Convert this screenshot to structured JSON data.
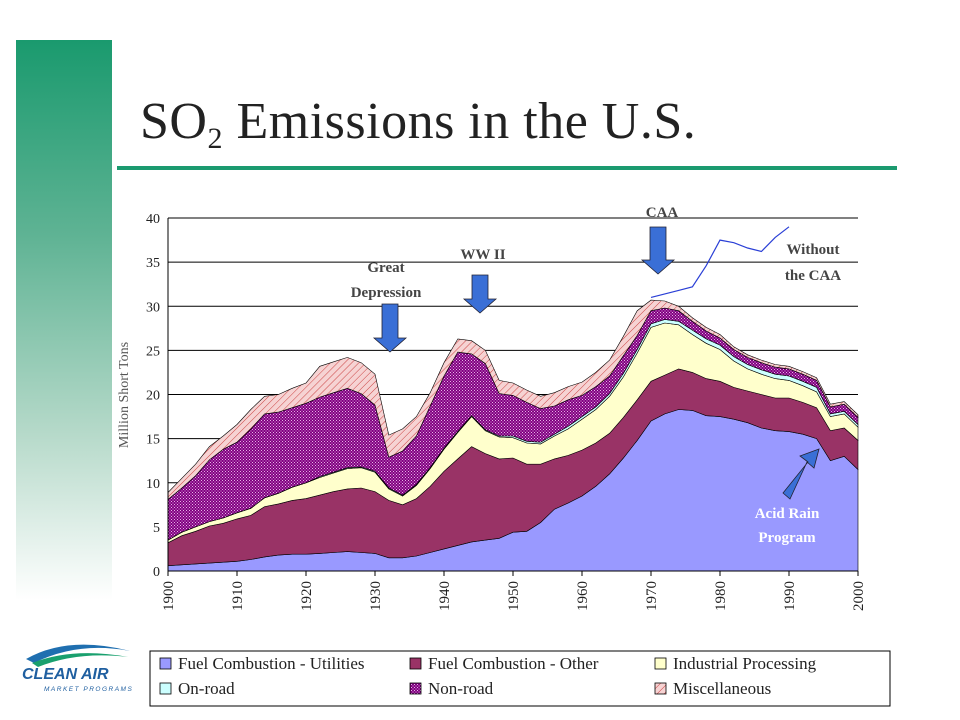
{
  "page": {
    "title_main": "SO",
    "title_sub": "2",
    "title_rest": " Emissions in the U.S.",
    "logo_text": "CLEAN AIR",
    "logo_subtext": "MARKET PROGRAMS"
  },
  "colors": {
    "utilities": "#9999ff",
    "other": "#993366",
    "industrial": "#ffffcc",
    "onroad": "#ccffff",
    "nonroad": "#800080",
    "misc": "#f3c6c6",
    "arrow": "#3a6fd6",
    "without_line": "#2a3fd6"
  },
  "chart_data": {
    "type": "area",
    "ylabel": "Million Short Tons",
    "ylim": [
      0,
      40
    ],
    "yticks": [
      0,
      5,
      10,
      15,
      20,
      25,
      30,
      35,
      40
    ],
    "xlim": [
      1900,
      2000
    ],
    "xticks": [
      "1900",
      "1910",
      "1920",
      "1930",
      "1940",
      "1950",
      "1960",
      "1970",
      "1980",
      "1990",
      "2000"
    ],
    "grid": "horizontal",
    "legend_position": "bottom",
    "x": [
      1900,
      1902,
      1904,
      1906,
      1908,
      1910,
      1912,
      1914,
      1916,
      1918,
      1920,
      1922,
      1924,
      1926,
      1928,
      1930,
      1932,
      1934,
      1936,
      1938,
      1940,
      1942,
      1944,
      1946,
      1948,
      1950,
      1952,
      1954,
      1956,
      1958,
      1960,
      1962,
      1964,
      1966,
      1968,
      1970,
      1972,
      1974,
      1976,
      1978,
      1980,
      1982,
      1984,
      1986,
      1988,
      1990,
      1992,
      1994,
      1996,
      1998,
      2000
    ],
    "series": [
      {
        "name": "Fuel Combustion - Utilities",
        "key": "utilities",
        "values": [
          0.6,
          0.7,
          0.8,
          0.9,
          1.0,
          1.1,
          1.3,
          1.6,
          1.8,
          1.9,
          1.9,
          2.0,
          2.1,
          2.2,
          2.1,
          2.0,
          1.5,
          1.5,
          1.7,
          2.1,
          2.5,
          2.9,
          3.3,
          3.5,
          3.7,
          4.4,
          4.5,
          5.5,
          7.0,
          7.7,
          8.5,
          9.6,
          11.0,
          12.8,
          14.8,
          17.0,
          17.8,
          18.3,
          18.2,
          17.6,
          17.5,
          17.2,
          16.8,
          16.2,
          15.9,
          15.8,
          15.5,
          15.0,
          12.5,
          13.0,
          11.5
        ]
      },
      {
        "name": "Fuel Combustion - Other",
        "key": "other",
        "values": [
          2.6,
          3.3,
          3.7,
          4.2,
          4.4,
          4.8,
          5.0,
          5.7,
          5.8,
          6.1,
          6.3,
          6.6,
          6.9,
          7.1,
          7.3,
          7.0,
          6.5,
          6.0,
          6.5,
          7.5,
          8.8,
          9.8,
          10.8,
          9.8,
          9.0,
          8.4,
          7.6,
          6.6,
          5.7,
          5.4,
          5.2,
          4.9,
          4.6,
          4.6,
          4.6,
          4.5,
          4.4,
          4.6,
          4.3,
          4.2,
          4.0,
          3.6,
          3.6,
          3.8,
          3.7,
          3.8,
          3.6,
          3.5,
          3.4,
          3.2,
          3.3
        ]
      },
      {
        "name": "Industrial Processing",
        "key": "industrial",
        "values": [
          0.3,
          0.4,
          0.5,
          0.5,
          0.6,
          0.7,
          0.8,
          1.0,
          1.2,
          1.5,
          1.8,
          2.0,
          2.1,
          2.3,
          2.3,
          2.2,
          1.3,
          1.0,
          1.5,
          2.0,
          2.5,
          3.0,
          3.4,
          2.6,
          2.5,
          2.3,
          2.4,
          2.3,
          2.6,
          3.0,
          3.5,
          3.8,
          4.2,
          4.6,
          5.3,
          6.1,
          5.9,
          5.0,
          4.3,
          4.0,
          3.6,
          3.0,
          2.5,
          2.3,
          2.2,
          2.0,
          1.9,
          1.8,
          1.6,
          1.6,
          1.5
        ]
      },
      {
        "name": "On-road",
        "key": "onroad",
        "values": [
          0,
          0,
          0,
          0,
          0,
          0,
          0,
          0,
          0,
          0,
          0,
          0.1,
          0.1,
          0.1,
          0.1,
          0.1,
          0.1,
          0.1,
          0.1,
          0.1,
          0.1,
          0.1,
          0.1,
          0.1,
          0.1,
          0.2,
          0.2,
          0.2,
          0.2,
          0.3,
          0.3,
          0.3,
          0.3,
          0.4,
          0.4,
          0.4,
          0.4,
          0.4,
          0.5,
          0.5,
          0.5,
          0.5,
          0.5,
          0.5,
          0.5,
          0.5,
          0.5,
          0.5,
          0.3,
          0.3,
          0.3
        ]
      },
      {
        "name": "Non-road",
        "key": "nonroad",
        "values": [
          4.6,
          5.0,
          5.8,
          7.0,
          7.8,
          8.0,
          9.0,
          9.5,
          9.2,
          9.0,
          9.0,
          9.0,
          9.0,
          9.0,
          8.3,
          7.5,
          3.5,
          5.0,
          5.5,
          7.0,
          8.2,
          9.0,
          7.0,
          7.5,
          4.8,
          4.6,
          4.4,
          3.8,
          3.2,
          3.0,
          2.4,
          2.3,
          2.0,
          2.0,
          1.6,
          1.5,
          1.3,
          1.2,
          1.0,
          0.9,
          0.8,
          0.8,
          0.8,
          0.8,
          0.8,
          0.8,
          0.8,
          0.8,
          0.8,
          0.8,
          0.8
        ]
      },
      {
        "name": "Miscellaneous",
        "key": "misc",
        "values": [
          0.8,
          1.1,
          1.3,
          1.5,
          1.5,
          2.0,
          2.2,
          2.0,
          2.0,
          2.2,
          2.3,
          3.5,
          3.5,
          3.5,
          3.5,
          3.5,
          2.5,
          2.5,
          2.2,
          1.5,
          1.5,
          1.5,
          1.5,
          1.5,
          1.5,
          1.4,
          1.4,
          1.4,
          1.5,
          1.5,
          1.5,
          1.6,
          1.8,
          2.2,
          2.8,
          1.2,
          0.8,
          0.5,
          0.4,
          0.4,
          0.4,
          0.3,
          0.3,
          0.3,
          0.3,
          0.3,
          0.3,
          0.3,
          0.3,
          0.3,
          0.3
        ]
      }
    ],
    "without_caa": {
      "x": [
        1970,
        1972,
        1974,
        1976,
        1978,
        1980,
        1982,
        1984,
        1986,
        1988,
        1990
      ],
      "values": [
        31.0,
        31.4,
        31.8,
        32.2,
        34.6,
        37.5,
        37.2,
        36.6,
        36.2,
        37.8,
        39.0
      ]
    },
    "annotations": [
      {
        "id": "great-depression",
        "line1": "Great",
        "line2": "Depression"
      },
      {
        "id": "ww2",
        "line1": "WW II"
      },
      {
        "id": "caa",
        "line1": "CAA"
      },
      {
        "id": "without-caa",
        "line1": "Without",
        "line2": "the CAA"
      },
      {
        "id": "acid-rain",
        "line1": "Acid Rain",
        "line2": "Program"
      }
    ]
  }
}
